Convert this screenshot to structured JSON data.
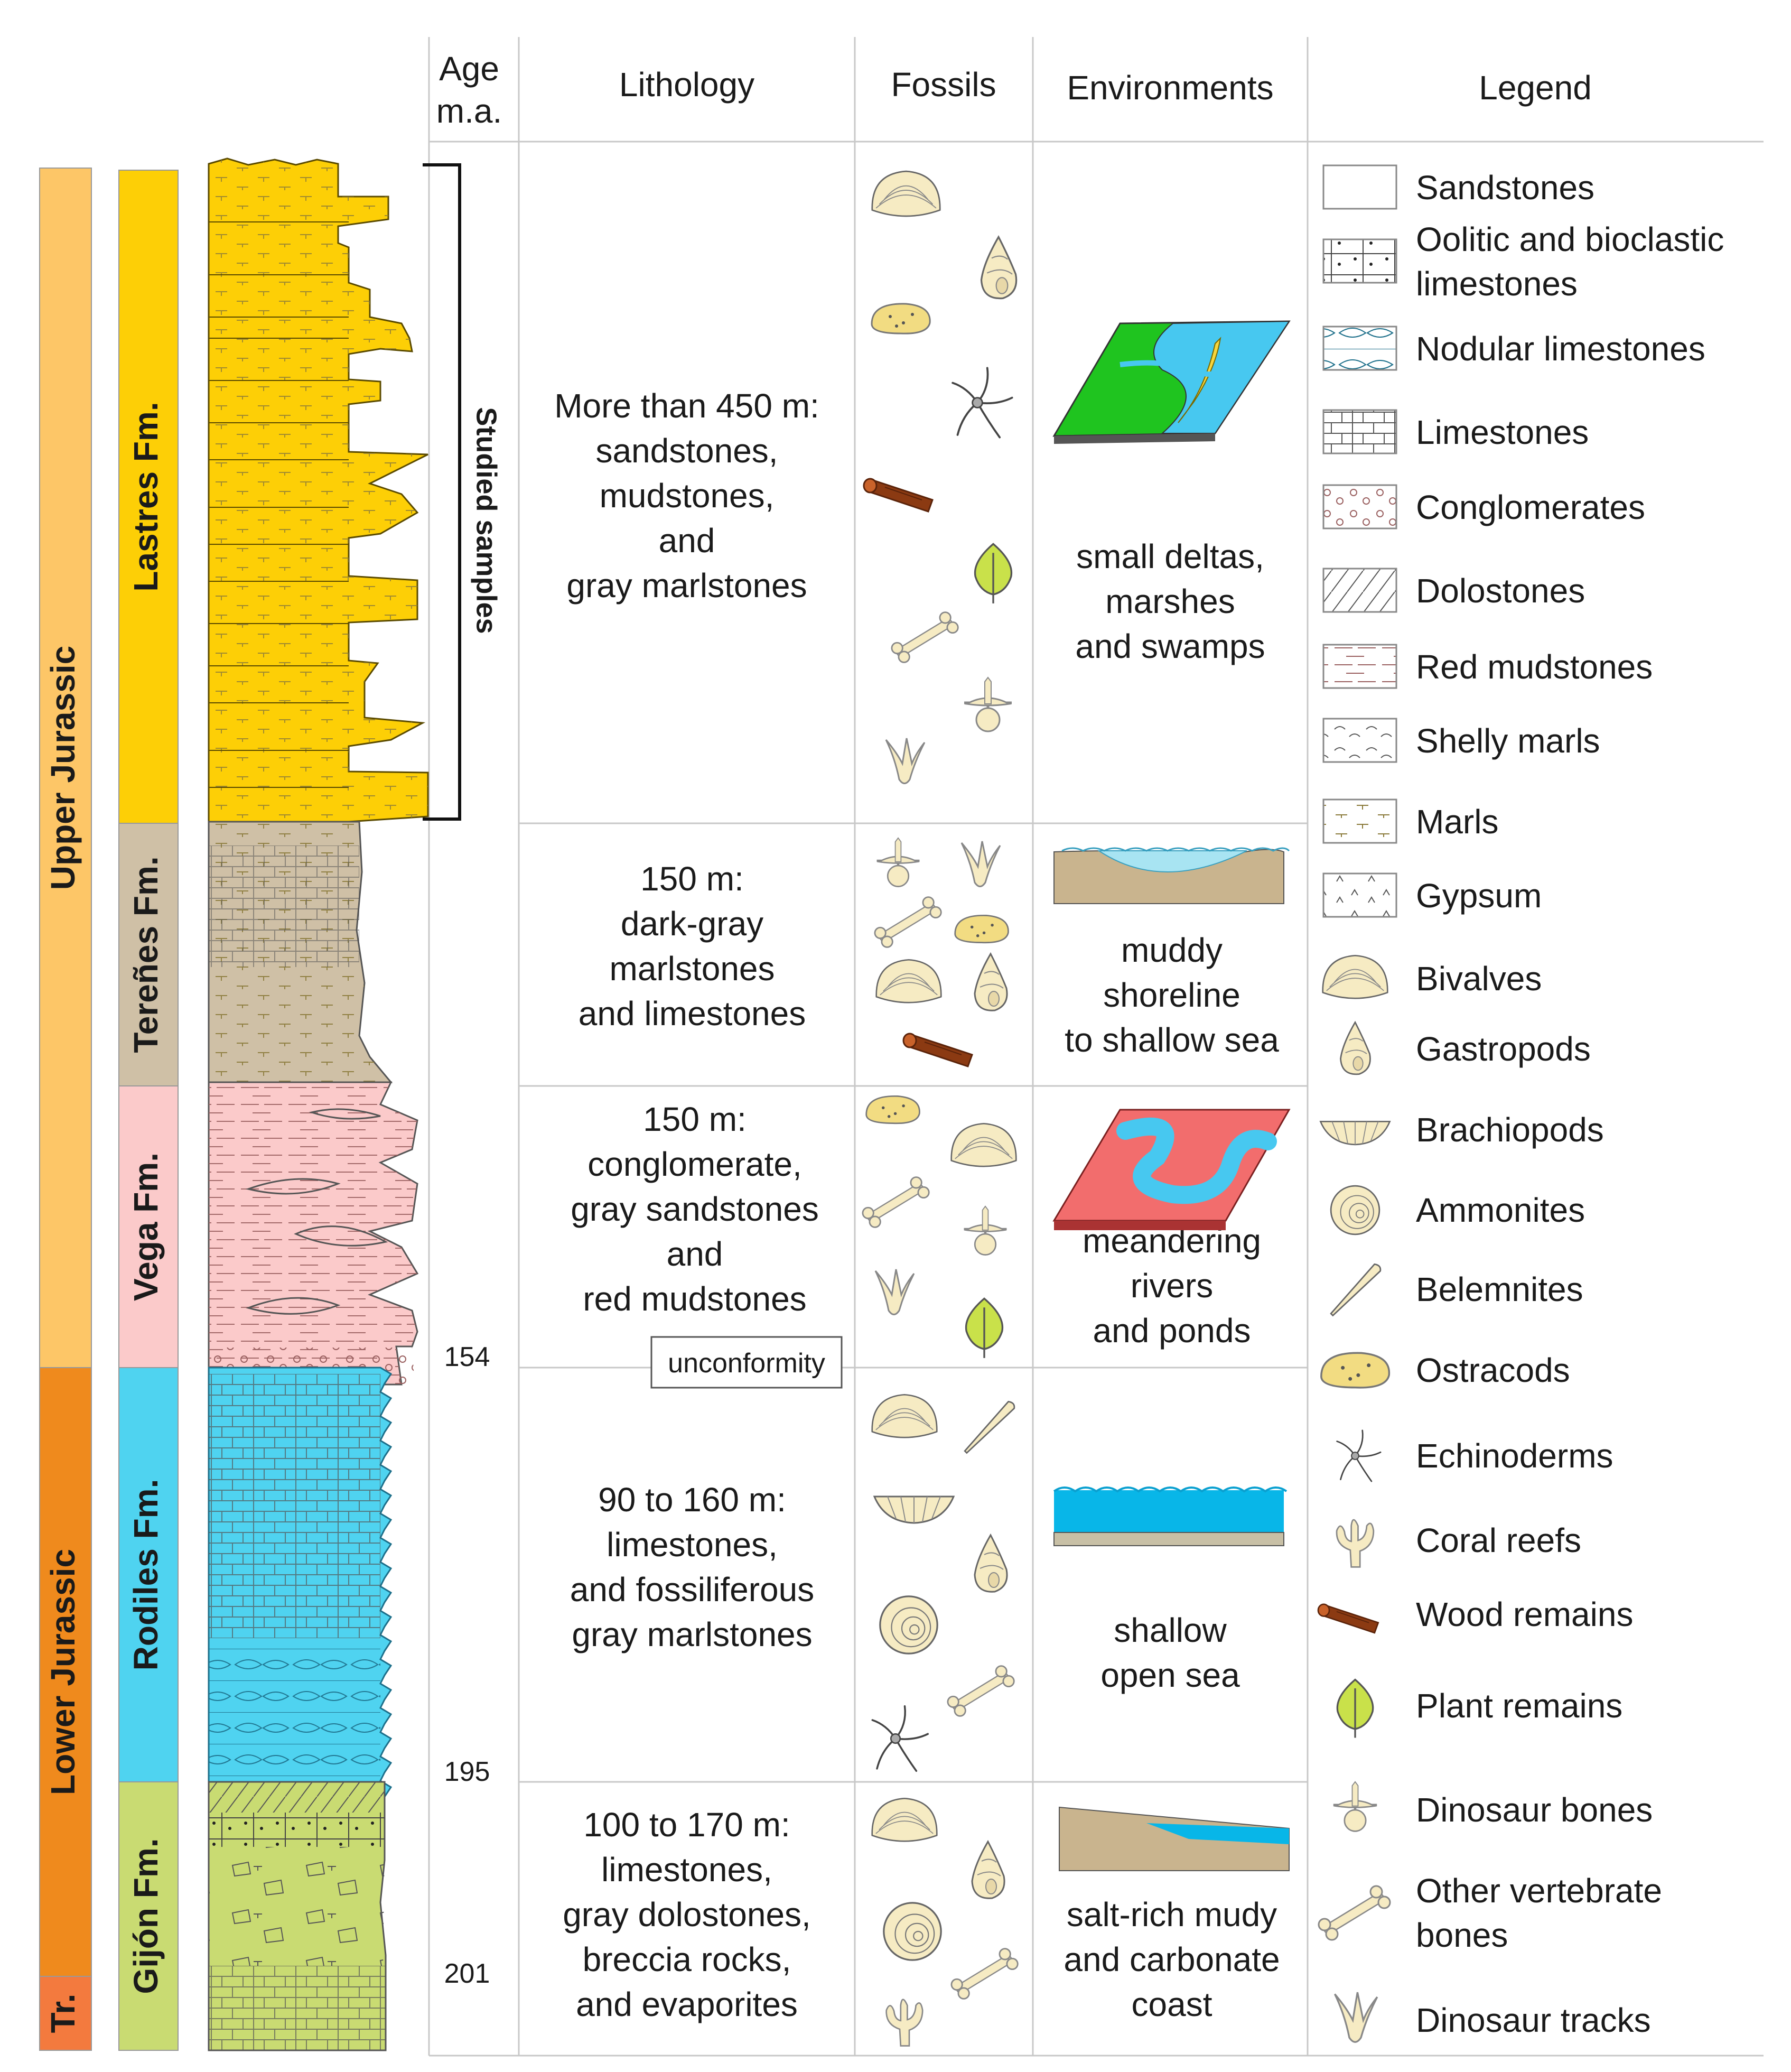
{
  "headers": {
    "age": [
      "Age",
      "m.a."
    ],
    "lithology": "Lithology",
    "fossils": "Fossils",
    "environments": "Environments",
    "legend": "Legend"
  },
  "epochs": [
    {
      "label": "Upper Jurassic",
      "color": "#FDC667"
    },
    {
      "label": "Lower Jurassic",
      "color": "#EF8A1D"
    },
    {
      "label": "Tr.",
      "color": "#F37A3E"
    }
  ],
  "formations": [
    {
      "label": "Lastres Fm.",
      "color": "#FDCF06"
    },
    {
      "label": "Tereñes Fm.",
      "color": "#CFC0A6"
    },
    {
      "label": "Vega Fm.",
      "color": "#FBCACA"
    },
    {
      "label": "Rodiles Fm.",
      "color": "#4FD3F0"
    },
    {
      "label": "Gijón Fm.",
      "color": "#C9DB72"
    }
  ],
  "ages": [
    "154",
    "195",
    "201"
  ],
  "studied_samples": "Studied samples",
  "unconformity": "unconformity",
  "rows": [
    {
      "lithology": [
        "More than 450 m:",
        "sandstones,",
        "mudstones,",
        "and",
        "gray marlstones"
      ],
      "environment": [
        "small deltas,",
        "marshes",
        "and swamps"
      ]
    },
    {
      "lithology": [
        "150 m:",
        "dark-gray",
        "marlstones",
        "and limestones"
      ],
      "environment": [
        "muddy",
        "shoreline",
        "to shallow sea"
      ]
    },
    {
      "lithology": [
        "150 m:",
        "conglomerate,",
        "gray sandstones",
        "and",
        "red mudstones"
      ],
      "environment": [
        "meandering",
        "rivers",
        "and ponds"
      ]
    },
    {
      "lithology": [
        "90 to 160 m:",
        "limestones,",
        "and fossiliferous",
        "gray marlstones"
      ],
      "environment": [
        "shallow",
        "open sea"
      ]
    },
    {
      "lithology": [
        "100 to 170 m:",
        "limestones,",
        "gray dolostones,",
        "breccia rocks,",
        "and evaporites"
      ],
      "environment": [
        "salt-rich mudy",
        "and carbonate",
        "coast"
      ]
    }
  ],
  "legend": [
    [
      "Sandstones"
    ],
    [
      "Oolitic and bioclastic",
      "limestones"
    ],
    [
      "Nodular limestones"
    ],
    [
      "Limestones"
    ],
    [
      "Conglomerates"
    ],
    [
      "Dolostones"
    ],
    [
      "Red mudstones"
    ],
    [
      "Shelly marls"
    ],
    [
      "Marls"
    ],
    [
      "Gypsum"
    ],
    [
      "Bivalves"
    ],
    [
      "Gastropods"
    ],
    [
      "Brachiopods"
    ],
    [
      "Ammonites"
    ],
    [
      "Belemnites"
    ],
    [
      "Ostracods"
    ],
    [
      "Echinoderms"
    ],
    [
      "Coral reefs"
    ],
    [
      "Wood remains"
    ],
    [
      "Plant remains"
    ],
    [
      "Dinosaur bones"
    ],
    [
      "Other vertebrate",
      "bones"
    ],
    [
      "Dinosaur tracks"
    ]
  ],
  "colors": {
    "line": "#c8c8c8",
    "fossil_fill": "#F6EBC3",
    "wood": "#8B3A12",
    "plant": "#C9E14A",
    "delta_green": "#1FC41F",
    "water": "#47C8F0",
    "delta_yellow": "#F8D63D",
    "mud": "#C9B48E",
    "shallow_water": "#A8E4F2",
    "open_sea": "#08B6E8",
    "river_bank": "#F26D6D"
  }
}
